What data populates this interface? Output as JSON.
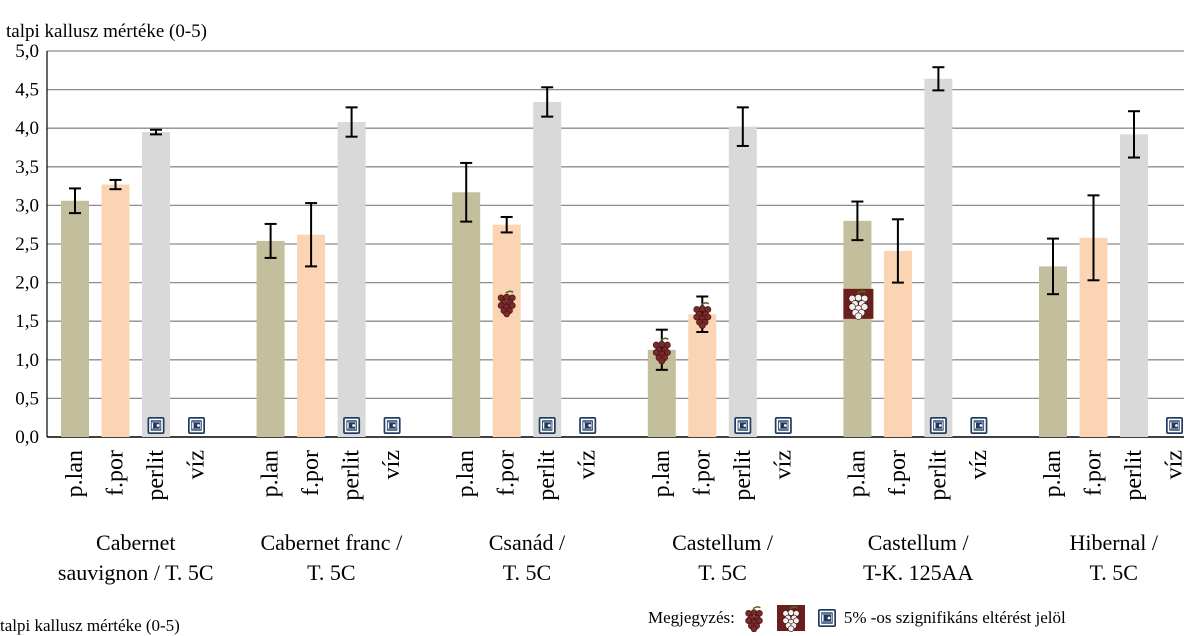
{
  "chart_data": {
    "type": "bar",
    "ylabel": "talpi kallusz mértéke (0-5)",
    "ylim": [
      0,
      5
    ],
    "yticks": [
      "0,0",
      "0,5",
      "1,0",
      "1,5",
      "2,0",
      "2,5",
      "3,0",
      "3,5",
      "4,0",
      "4,5",
      "5,0"
    ],
    "grid": true,
    "categories": [
      "p.lan",
      "f.por",
      "perlit",
      "víz"
    ],
    "colors": {
      "p.lan": "#c3be9b",
      "f.por": "#fbd4b3",
      "perlit": "#d9d9d9",
      "víz": "#ffffff",
      "marker": "#7b2a2a",
      "safe": "#1f3a5f"
    },
    "groups": [
      {
        "label_line1": "Cabernet",
        "label_line2": "sauvignon / T. 5C",
        "values": [
          3.06,
          3.27,
          3.95,
          0
        ],
        "errors": [
          0.16,
          0.06,
          0.03,
          0
        ],
        "markers": [
          null,
          null,
          "safe",
          "safe"
        ]
      },
      {
        "label_line1": "Cabernet franc /",
        "label_line2": "T. 5C",
        "values": [
          2.54,
          2.62,
          4.08,
          0
        ],
        "errors": [
          0.22,
          0.41,
          0.19,
          0
        ],
        "markers": [
          null,
          null,
          "safe",
          "safe"
        ]
      },
      {
        "label_line1": "Csanád /",
        "label_line2": "T. 5C",
        "values": [
          3.17,
          2.75,
          4.34,
          0
        ],
        "errors": [
          0.38,
          0.1,
          0.19,
          0
        ],
        "markers": [
          null,
          "grape",
          "safe",
          "safe"
        ]
      },
      {
        "label_line1": "Castellum /",
        "label_line2": "T. 5C",
        "values": [
          1.13,
          1.59,
          4.02,
          0
        ],
        "errors": [
          0.26,
          0.23,
          0.25,
          0
        ],
        "markers": [
          "grape",
          "grape",
          "safe",
          "safe"
        ]
      },
      {
        "label_line1": "Castellum /",
        "label_line2": "T-K. 125AA",
        "values": [
          2.8,
          2.41,
          4.64,
          0
        ],
        "errors": [
          0.25,
          0.41,
          0.15,
          0
        ],
        "markers": [
          "grape-box",
          null,
          "safe",
          "safe"
        ]
      },
      {
        "label_line1": "Hibernal /",
        "label_line2": "T. 5C",
        "values": [
          2.21,
          2.58,
          3.92,
          0
        ],
        "errors": [
          0.36,
          0.55,
          0.3,
          0
        ],
        "markers": [
          null,
          null,
          null,
          "safe"
        ]
      }
    ],
    "note": {
      "prefix": "Megjegyzés:",
      "text": "5% -os szignifikáns eltérést jelöl"
    }
  },
  "footer_cut_text": "talpi kallusz mértéke (0-5)"
}
